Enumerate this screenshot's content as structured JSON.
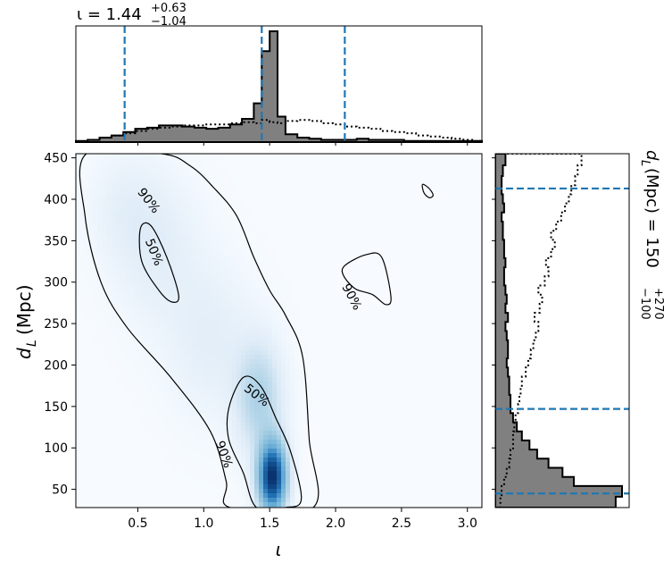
{
  "chart_data": [
    {
      "panel": "top-marginal",
      "type": "histogram",
      "title": "ι = 1.44",
      "title_sup": "+0.63",
      "title_sub": "−1.04",
      "median": 1.44,
      "credible_interval": [
        0.4,
        2.07
      ],
      "xlim": [
        0.03,
        3.11
      ],
      "bin_edges": [
        0.03,
        0.12,
        0.21,
        0.3,
        0.39,
        0.48,
        0.57,
        0.66,
        0.75,
        0.84,
        0.93,
        1.02,
        1.11,
        1.2,
        1.29,
        1.38,
        1.44,
        1.5,
        1.56,
        1.62,
        1.71,
        1.8,
        1.89,
        1.98,
        2.07,
        2.16,
        2.25,
        2.34,
        2.43,
        2.52,
        2.61,
        2.7,
        2.79,
        2.88,
        2.97,
        3.06,
        3.11
      ],
      "filled_density": [
        0.01,
        0.02,
        0.04,
        0.06,
        0.09,
        0.12,
        0.13,
        0.15,
        0.15,
        0.14,
        0.13,
        0.12,
        0.13,
        0.16,
        0.21,
        0.35,
        0.82,
        1.0,
        0.23,
        0.07,
        0.04,
        0.03,
        0.02,
        0.02,
        0.02,
        0.03,
        0.02,
        0.02,
        0.02,
        0.01,
        0.01,
        0.01,
        0.01,
        0.01,
        0.01,
        0.01
      ],
      "prior_density": [
        0.0,
        0.02,
        0.04,
        0.06,
        0.08,
        0.1,
        0.12,
        0.13,
        0.14,
        0.15,
        0.15,
        0.16,
        0.16,
        0.17,
        0.18,
        0.17,
        0.2,
        0.18,
        0.17,
        0.19,
        0.2,
        0.19,
        0.17,
        0.16,
        0.14,
        0.13,
        0.12,
        0.1,
        0.09,
        0.08,
        0.06,
        0.05,
        0.04,
        0.03,
        0.02,
        0.01
      ]
    },
    {
      "panel": "joint",
      "type": "heatmap",
      "xlabel": "ι",
      "ylabel": "d",
      "ylabel_sub": "L",
      "ylabel_unit": "(Mpc)",
      "xlim": [
        0.03,
        3.11
      ],
      "ylim": [
        28,
        455
      ],
      "xticks": [
        "0.5",
        "1.0",
        "1.5",
        "2.0",
        "2.5",
        "3.0"
      ],
      "xtick_values": [
        0.5,
        1.0,
        1.5,
        2.0,
        2.5,
        3.0
      ],
      "yticks": [
        "50",
        "100",
        "150",
        "200",
        "250",
        "300",
        "350",
        "400",
        "450"
      ],
      "ytick_values": [
        50,
        100,
        150,
        200,
        250,
        300,
        350,
        400,
        450
      ],
      "colormap": "Blues",
      "density_peaks": [
        {
          "x": 1.52,
          "y": 65,
          "weight": 1.0,
          "sx": 0.07,
          "sy": 28
        },
        {
          "x": 1.42,
          "y": 160,
          "weight": 0.22,
          "sx": 0.12,
          "sy": 45
        },
        {
          "x": 1.05,
          "y": 230,
          "weight": 0.07,
          "sx": 0.22,
          "sy": 60
        },
        {
          "x": 0.65,
          "y": 340,
          "weight": 0.07,
          "sx": 0.22,
          "sy": 60
        },
        {
          "x": 0.4,
          "y": 390,
          "weight": 0.05,
          "sx": 0.18,
          "sy": 45
        }
      ],
      "contours": [
        {
          "level": "90%",
          "label": "90%",
          "points": [
            [
              0.11,
              455
            ],
            [
              0.1,
              380
            ],
            [
              0.22,
              300
            ],
            [
              0.42,
              245
            ],
            [
              0.75,
              185
            ],
            [
              1.05,
              120
            ],
            [
              1.17,
              60
            ],
            [
              1.2,
              28
            ],
            [
              1.83,
              28
            ],
            [
              1.8,
              110
            ],
            [
              1.75,
              210
            ],
            [
              1.62,
              260
            ],
            [
              1.5,
              290
            ],
            [
              1.38,
              330
            ],
            [
              1.25,
              380
            ],
            [
              1.07,
              415
            ],
            [
              0.9,
              440
            ],
            [
              0.68,
              455
            ]
          ]
        },
        {
          "level": "90%",
          "label": "90%",
          "points": [
            [
              2.07,
              320
            ],
            [
              2.23,
              333
            ],
            [
              2.35,
              330
            ],
            [
              2.42,
              282
            ],
            [
              2.38,
              273
            ],
            [
              2.28,
              285
            ],
            [
              2.15,
              292
            ],
            [
              2.06,
              308
            ]
          ]
        },
        {
          "level": "90%",
          "label": "",
          "points": [
            [
              2.66,
              418
            ],
            [
              2.71,
              413
            ],
            [
              2.74,
              405
            ],
            [
              2.71,
              402
            ],
            [
              2.67,
              408
            ]
          ]
        },
        {
          "level": "50%",
          "label": "50%",
          "points": [
            [
              0.52,
              365
            ],
            [
              0.6,
              368
            ],
            [
              0.72,
              330
            ],
            [
              0.81,
              284
            ],
            [
              0.76,
              276
            ],
            [
              0.66,
              290
            ],
            [
              0.53,
              325
            ]
          ]
        },
        {
          "level": "50%",
          "label": "50%",
          "points": [
            [
              1.19,
              148
            ],
            [
              1.3,
              185
            ],
            [
              1.43,
              175
            ],
            [
              1.55,
              135
            ],
            [
              1.66,
              95
            ],
            [
              1.74,
              38
            ],
            [
              1.62,
              28
            ],
            [
              1.4,
              28
            ],
            [
              1.3,
              70
            ],
            [
              1.19,
              110
            ]
          ]
        }
      ],
      "contour_labels": [
        {
          "text": "90%",
          "x": 0.58,
          "y": 398,
          "angle": 52
        },
        {
          "text": "50%",
          "x": 0.62,
          "y": 336,
          "angle": 68
        },
        {
          "text": "90%",
          "x": 2.12,
          "y": 282,
          "angle": 62
        },
        {
          "text": "50%",
          "x": 1.4,
          "y": 163,
          "angle": 38
        },
        {
          "text": "90%",
          "x": 1.15,
          "y": 92,
          "angle": 70
        }
      ]
    },
    {
      "panel": "right-marginal",
      "type": "histogram",
      "orientation": "horizontal",
      "title": "d",
      "title_sub_label": "L",
      "title_rest": " (Mpc) = 150",
      "title_sup": "+270",
      "title_sub": "−100",
      "median": 147,
      "credible_interval": [
        45,
        413
      ],
      "ylim": [
        28,
        455
      ],
      "bin_edges": [
        28,
        41,
        54,
        65,
        76,
        87,
        98,
        109,
        120,
        131,
        142,
        153,
        164,
        175,
        186,
        197,
        208,
        219,
        230,
        241,
        252,
        263,
        274,
        285,
        296,
        307,
        318,
        329,
        340,
        351,
        362,
        373,
        384,
        395,
        406,
        417,
        428,
        441,
        455
      ],
      "filled_density": [
        0.95,
        1.0,
        0.62,
        0.53,
        0.42,
        0.33,
        0.27,
        0.21,
        0.17,
        0.14,
        0.12,
        0.12,
        0.11,
        0.11,
        0.1,
        0.09,
        0.1,
        0.1,
        0.09,
        0.08,
        0.1,
        0.08,
        0.09,
        0.08,
        0.07,
        0.07,
        0.08,
        0.07,
        0.07,
        0.06,
        0.06,
        0.05,
        0.07,
        0.06,
        0.05,
        0.05,
        0.06,
        0.08
      ],
      "prior_density": [
        0.04,
        0.05,
        0.07,
        0.09,
        0.11,
        0.12,
        0.14,
        0.14,
        0.15,
        0.16,
        0.18,
        0.19,
        0.2,
        0.21,
        0.24,
        0.26,
        0.28,
        0.3,
        0.32,
        0.34,
        0.31,
        0.35,
        0.37,
        0.34,
        0.39,
        0.42,
        0.4,
        0.44,
        0.47,
        0.44,
        0.48,
        0.52,
        0.55,
        0.58,
        0.6,
        0.63,
        0.65,
        0.68
      ]
    }
  ]
}
